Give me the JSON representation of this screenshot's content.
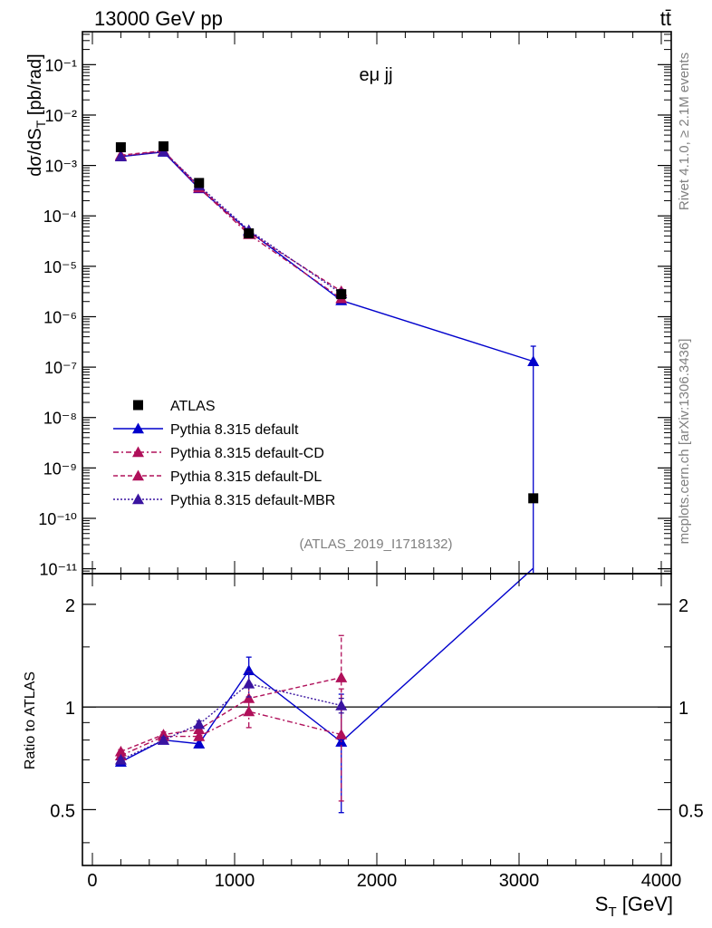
{
  "header": {
    "left": "13000 GeV pp",
    "right": "tt̄"
  },
  "side_labels": {
    "rivet": "Rivet 4.1.0, ≥ 2.1M events",
    "mcplots": "mcplots.cern.ch [arXiv:1306.3436]"
  },
  "chart_data": {
    "type": "line",
    "title": "eμ jj",
    "analysis_label": "(ATLAS_2019_I1718132)",
    "xlabel": "S_T [GeV]",
    "ylabel": "dσ/dS_T [pb/rad]",
    "ratio_ylabel": "Ratio to ATLAS",
    "xlim": [
      -70,
      4070
    ],
    "ylim": [
      8e-12,
      0.45
    ],
    "ratio_ylim": [
      0.343,
      2.46
    ],
    "x_ticks": [
      0,
      1000,
      2000,
      3000,
      4000
    ],
    "x_tick_labels": [
      "0",
      "1000",
      "2000",
      "3000",
      "4000"
    ],
    "y_ticks": [
      1e-11,
      1e-10,
      1e-09,
      1e-08,
      1e-07,
      1e-06,
      1e-05,
      0.0001,
      0.001,
      0.01,
      0.1
    ],
    "y_tick_labels": [
      "10⁻¹¹",
      "10⁻¹⁰",
      "10⁻⁹",
      "10⁻⁸",
      "10⁻⁷",
      "10⁻⁶",
      "10⁻⁵",
      "10⁻⁴",
      "10⁻³",
      "10⁻²",
      "10⁻¹"
    ],
    "ratio_ticks": [
      0.5,
      1,
      2
    ],
    "ratio_tick_labels": [
      "0.5",
      "1",
      "2"
    ],
    "data": {
      "name": "ATLAS",
      "x": [
        200,
        500,
        750,
        1100,
        1750,
        3100
      ],
      "y": [
        0.0023,
        0.0024,
        0.00045,
        4.5e-05,
        2.8e-06,
        2.5e-10
      ]
    },
    "series": [
      {
        "name": "Pythia 8.315 default",
        "color": "#0000cc",
        "dash": "",
        "x": [
          200,
          500,
          750,
          1100,
          1750,
          3100
        ],
        "y": [
          0.0015,
          0.00185,
          0.00035,
          5e-05,
          2.1e-06,
          1.3e-07
        ],
        "err_lo": [
          5e-05,
          5e-05,
          1e-05,
          3e-06,
          2e-07,
          1.3e-07
        ],
        "err_hi": [
          5e-05,
          5e-05,
          1e-05,
          3e-06,
          2e-07,
          1.3e-07
        ],
        "ratio": [
          0.69,
          0.8,
          0.78,
          1.28,
          0.79,
          520
        ],
        "ratio_err": [
          0.01,
          0.015,
          0.02,
          0.12,
          0.3,
          0
        ]
      },
      {
        "name": "Pythia 8.315 default-CD",
        "color": "#b0105a",
        "dash": "6,3,2,3",
        "x": [
          200,
          500,
          750,
          1100,
          1750
        ],
        "y": [
          0.00155,
          0.0019,
          0.00036,
          4.3e-05,
          2.3e-06
        ],
        "err_lo": [
          5e-05,
          5e-05,
          1e-05,
          3e-06,
          3e-07
        ],
        "err_hi": [
          5e-05,
          5e-05,
          1e-05,
          3e-06,
          3e-07
        ],
        "ratio": [
          0.72,
          0.82,
          0.82,
          0.97,
          0.83
        ],
        "ratio_err": [
          0.01,
          0.015,
          0.02,
          0.1,
          0.3
        ]
      },
      {
        "name": "Pythia 8.315 default-DL",
        "color": "#b0105a",
        "dash": "5,3",
        "x": [
          200,
          500,
          750,
          1100,
          1750
        ],
        "y": [
          0.0016,
          0.00195,
          0.00038,
          4.7e-05,
          3.2e-06
        ],
        "err_lo": [
          5e-05,
          5e-05,
          1e-05,
          3e-06,
          3e-07
        ],
        "err_hi": [
          5e-05,
          5e-05,
          1e-05,
          3e-06,
          3e-07
        ],
        "ratio": [
          0.74,
          0.83,
          0.86,
          1.06,
          1.22
        ],
        "ratio_err": [
          0.01,
          0.015,
          0.02,
          0.1,
          0.4
        ]
      },
      {
        "name": "Pythia 8.315 default-MBR",
        "color": "#3a14a0",
        "dash": "2,2",
        "x": [
          200,
          500,
          750,
          1100,
          1750
        ],
        "y": [
          0.0015,
          0.00188,
          0.0004,
          5.2e-05,
          2.9e-06
        ],
        "err_lo": [
          5e-05,
          5e-05,
          1e-05,
          3e-06,
          3e-07
        ],
        "err_hi": [
          5e-05,
          5e-05,
          1e-05,
          3e-06,
          3e-07
        ],
        "ratio": [
          0.7,
          0.8,
          0.89,
          1.17,
          1.01
        ],
        "ratio_err": [
          0.01,
          0.015,
          0.02,
          0.1,
          0.05
        ]
      }
    ],
    "legend_position": "lower-left"
  }
}
